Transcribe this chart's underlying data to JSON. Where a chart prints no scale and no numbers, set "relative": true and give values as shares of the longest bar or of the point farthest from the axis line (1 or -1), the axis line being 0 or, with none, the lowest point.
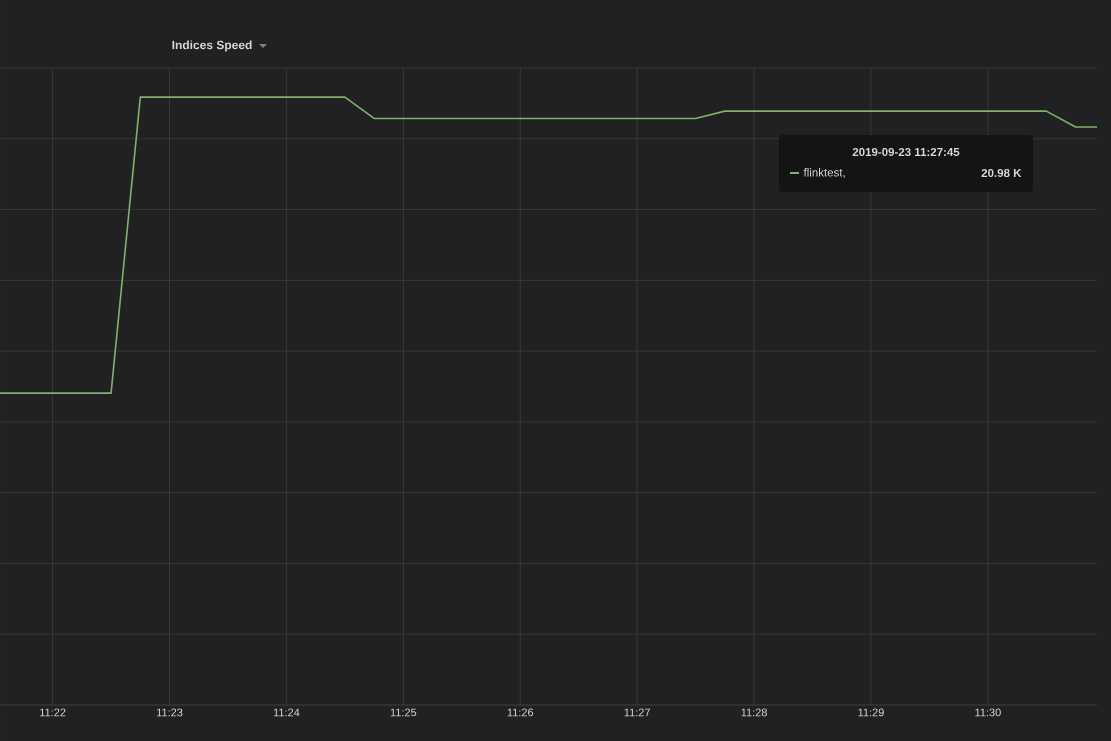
{
  "chart_data": {
    "type": "line",
    "title": "Indices Speed",
    "relative": true,
    "grid": true,
    "line_style": "solid",
    "marker": "none",
    "x": [
      11.359167,
      11.375,
      11.379167,
      11.408333,
      11.4125,
      11.458333,
      11.4625,
      11.508333,
      11.5125,
      11.515556
    ],
    "series": [
      {
        "color": "#7eb26d",
        "values": [
          0.513,
          0.513,
          1.0,
          1.0,
          0.965,
          0.965,
          0.977,
          0.977,
          0.951,
          0.951
        ]
      }
    ],
    "xlim": [
      11.359167,
      11.515556
    ],
    "xticks": [
      {
        "value": 11.366667,
        "label": "11:22"
      },
      {
        "value": 11.383333,
        "label": "11:23"
      },
      {
        "value": 11.4,
        "label": "11:24"
      },
      {
        "value": 11.416667,
        "label": "11:25"
      },
      {
        "value": 11.433333,
        "label": "11:26"
      },
      {
        "value": 11.45,
        "label": "11:27"
      },
      {
        "value": 11.466667,
        "label": "11:28"
      },
      {
        "value": 11.483333,
        "label": "11:29"
      },
      {
        "value": 11.5,
        "label": "11:30"
      }
    ],
    "annotations": [
      "2019-09-23 11:27:45",
      "flinktest,",
      "20.98 K"
    ]
  }
}
